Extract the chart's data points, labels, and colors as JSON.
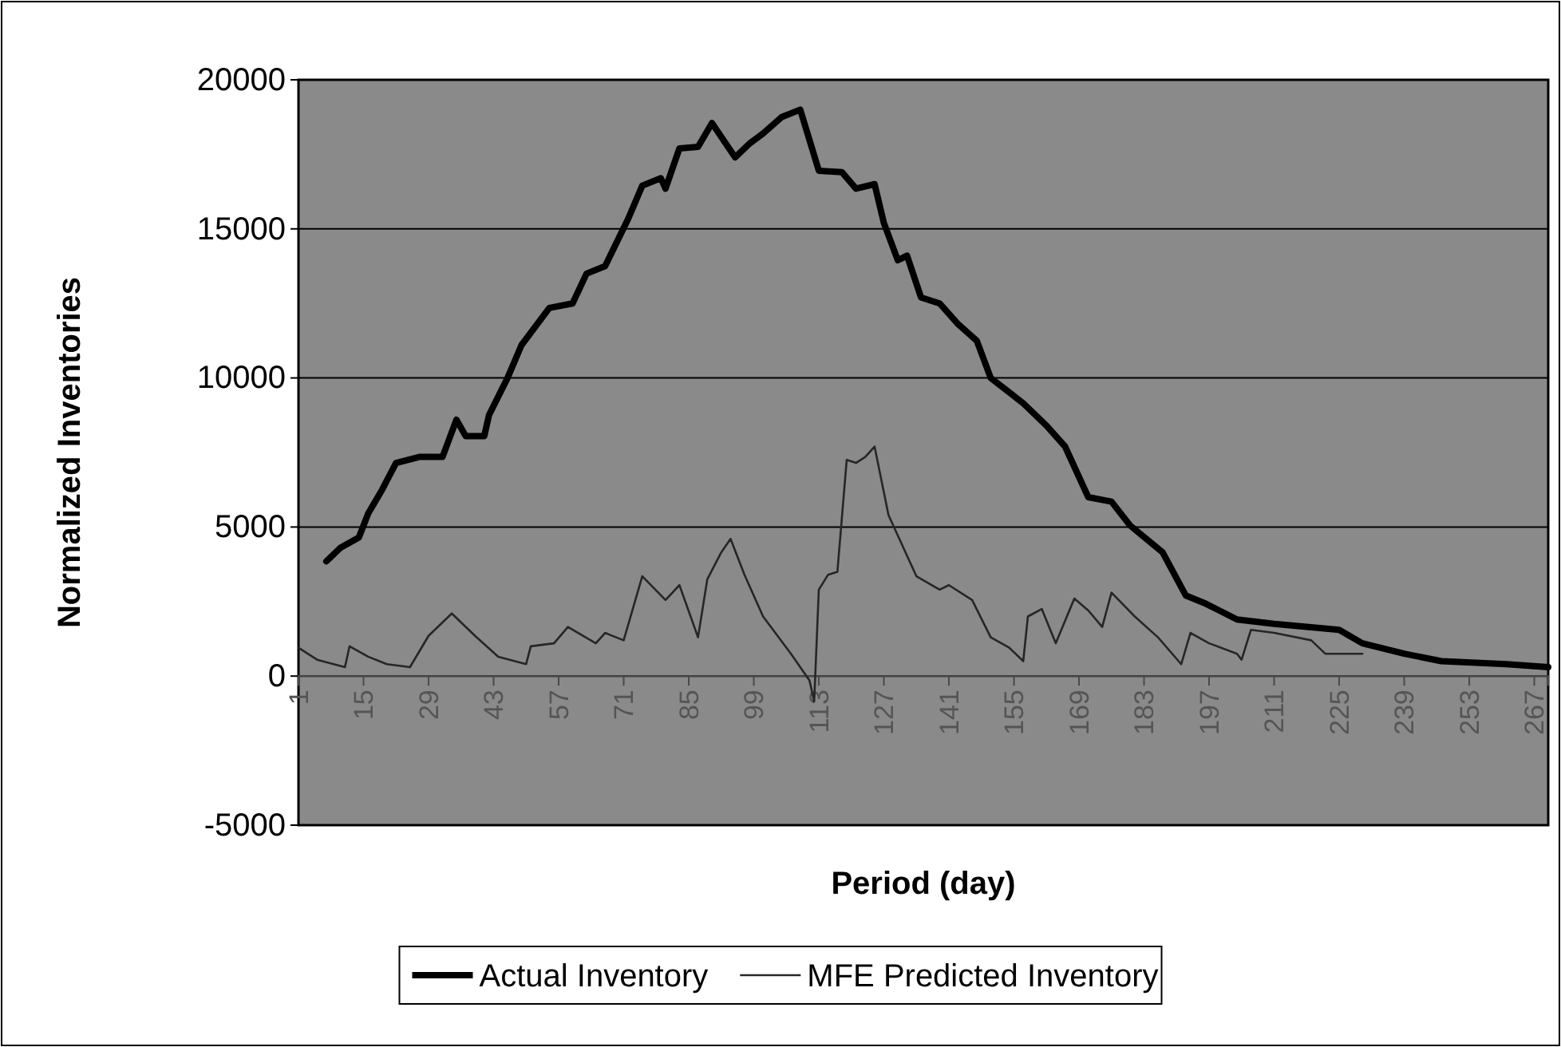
{
  "chart_data": {
    "type": "line",
    "xlabel": "Period (day)",
    "ylabel": "Normalized Inventories",
    "xlim": [
      1,
      270
    ],
    "xticks": [
      1,
      15,
      29,
      43,
      57,
      71,
      85,
      99,
      113,
      127,
      141,
      155,
      169,
      183,
      197,
      211,
      225,
      239,
      253,
      267
    ],
    "ylim": [
      -5000,
      20000
    ],
    "yticks": [
      -5000,
      0,
      5000,
      10000,
      15000,
      20000
    ],
    "grid": "y",
    "legend": "bottom",
    "series": [
      {
        "name": "Actual Inventory",
        "color": "#000000",
        "x": [
          7,
          10,
          14,
          16,
          19,
          22,
          27,
          32,
          35,
          37,
          41,
          42,
          46,
          49,
          55,
          60,
          63,
          67,
          72,
          75,
          79,
          80,
          83,
          87,
          90,
          95,
          98,
          101,
          105,
          109,
          113,
          118,
          121,
          125,
          127,
          130,
          132,
          135,
          139,
          143,
          147,
          150,
          157,
          162,
          166,
          171,
          176,
          180,
          187,
          192,
          196,
          203,
          211,
          225,
          230,
          239,
          247,
          261,
          270
        ],
        "values": [
          3850,
          4300,
          4650,
          5450,
          6250,
          7150,
          7350,
          7350,
          8600,
          8050,
          8050,
          8750,
          10000,
          11100,
          12350,
          12500,
          13500,
          13750,
          15350,
          16450,
          16700,
          16350,
          17700,
          17750,
          18550,
          17400,
          17850,
          18200,
          18750,
          19000,
          16950,
          16900,
          16350,
          16500,
          15200,
          13950,
          14100,
          12700,
          12500,
          11800,
          11250,
          10000,
          9150,
          8400,
          7700,
          6000,
          5850,
          5050,
          4150,
          2700,
          2450,
          1900,
          1750,
          1550,
          1100,
          750,
          500,
          400,
          300
        ]
      },
      {
        "name": "MFE Predicted Inventory",
        "color": "#262626",
        "x": [
          1,
          5,
          11,
          12,
          16,
          20,
          25,
          29,
          34,
          39,
          44,
          50,
          51,
          56,
          59,
          65,
          67,
          71,
          75,
          80,
          83,
          87,
          89,
          92,
          94,
          97,
          101,
          107,
          111,
          112,
          113,
          115,
          117,
          119,
          121,
          123,
          125,
          128,
          134,
          139,
          141,
          146,
          150,
          154,
          157,
          158,
          161,
          164,
          168,
          171,
          174,
          176,
          181,
          186,
          191,
          193,
          197,
          203,
          204,
          206,
          211,
          219,
          222,
          230
        ],
        "values": [
          950,
          550,
          300,
          1000,
          650,
          400,
          300,
          1350,
          2100,
          1350,
          650,
          400,
          1000,
          1100,
          1650,
          1100,
          1450,
          1200,
          3350,
          2550,
          3050,
          1300,
          3250,
          4150,
          4600,
          3400,
          2000,
          750,
          -150,
          -850,
          2900,
          3400,
          3500,
          7250,
          7150,
          7350,
          7700,
          5400,
          3350,
          2900,
          3050,
          2550,
          1300,
          950,
          500,
          2000,
          2250,
          1100,
          2600,
          2200,
          1650,
          2800,
          2000,
          1300,
          400,
          1450,
          1100,
          750,
          550,
          1550,
          1450,
          1200,
          750,
          750
        ]
      }
    ]
  }
}
